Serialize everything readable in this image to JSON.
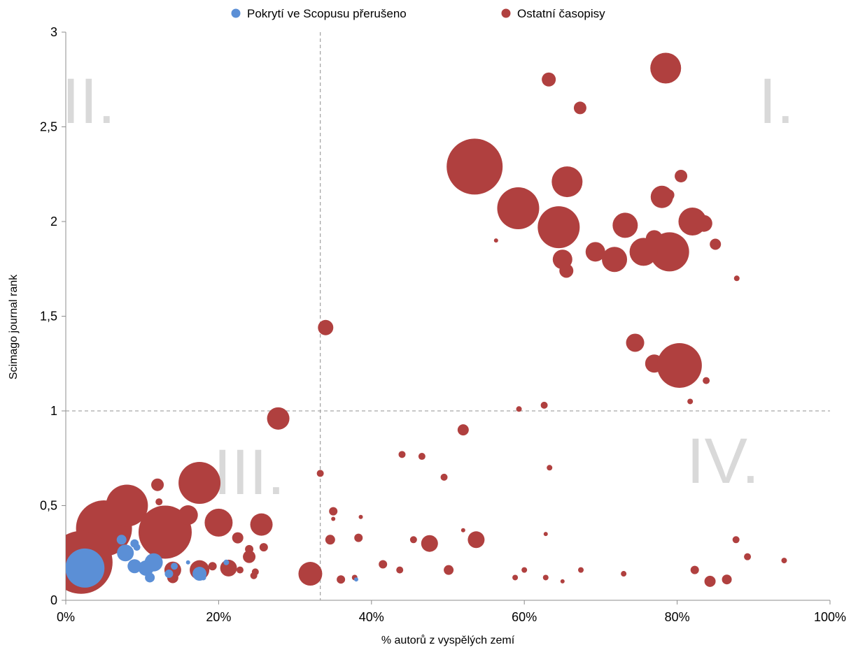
{
  "chart_data": {
    "type": "scatter",
    "bubble": true,
    "xlabel": "% autorů z vyspělých zemí",
    "ylabel": "Scimago journal rank",
    "xlim": [
      0,
      1
    ],
    "ylim": [
      0,
      3
    ],
    "x_ticks": [
      {
        "v": 0,
        "label": "0%"
      },
      {
        "v": 0.2,
        "label": "20%"
      },
      {
        "v": 0.4,
        "label": "40%"
      },
      {
        "v": 0.6,
        "label": "60%"
      },
      {
        "v": 0.8,
        "label": "80%"
      },
      {
        "v": 1.0,
        "label": "100%"
      }
    ],
    "y_ticks": [
      {
        "v": 0,
        "label": "0"
      },
      {
        "v": 0.5,
        "label": "0,5"
      },
      {
        "v": 1,
        "label": "1"
      },
      {
        "v": 1.5,
        "label": "1,5"
      },
      {
        "v": 2,
        "label": "2"
      },
      {
        "v": 2.5,
        "label": "2,5"
      },
      {
        "v": 3,
        "label": "3"
      }
    ],
    "legend_position": "top-center",
    "reference_lines": {
      "x": 0.333,
      "y": 1.0
    },
    "quadrant_labels": [
      {
        "text": "I.",
        "x": 0.93,
        "y": 2.52
      },
      {
        "text": "II.",
        "x": 0.03,
        "y": 2.52
      },
      {
        "text": "III.",
        "x": 0.24,
        "y": 0.56
      },
      {
        "text": "IV.",
        "x": 0.86,
        "y": 0.62
      }
    ],
    "series": [
      {
        "name": "Ostatní časopisy",
        "color": "#b0403f",
        "points": [
          [
            0.785,
            2.81,
            22
          ],
          [
            0.632,
            2.75,
            10
          ],
          [
            0.673,
            2.6,
            9
          ],
          [
            0.535,
            2.29,
            40
          ],
          [
            0.656,
            2.21,
            22
          ],
          [
            0.805,
            2.24,
            9
          ],
          [
            0.592,
            2.07,
            30
          ],
          [
            0.645,
            1.97,
            30
          ],
          [
            0.789,
            2.14,
            8
          ],
          [
            0.78,
            2.13,
            16
          ],
          [
            0.82,
            2.0,
            20
          ],
          [
            0.835,
            1.99,
            12
          ],
          [
            0.732,
            1.98,
            18
          ],
          [
            0.563,
            1.9,
            3
          ],
          [
            0.77,
            1.91,
            12
          ],
          [
            0.79,
            1.84,
            28
          ],
          [
            0.756,
            1.84,
            20
          ],
          [
            0.693,
            1.84,
            14
          ],
          [
            0.718,
            1.8,
            18
          ],
          [
            0.65,
            1.8,
            14
          ],
          [
            0.655,
            1.74,
            10
          ],
          [
            0.85,
            1.88,
            8
          ],
          [
            0.878,
            1.7,
            4
          ],
          [
            0.34,
            1.44,
            11
          ],
          [
            0.745,
            1.36,
            13
          ],
          [
            0.77,
            1.25,
            13
          ],
          [
            0.803,
            1.24,
            32
          ],
          [
            0.838,
            1.16,
            5
          ],
          [
            0.817,
            1.05,
            4
          ],
          [
            0.593,
            1.01,
            4
          ],
          [
            0.626,
            1.03,
            5
          ],
          [
            0.278,
            0.96,
            16
          ],
          [
            0.52,
            0.9,
            8
          ],
          [
            0.44,
            0.77,
            5
          ],
          [
            0.466,
            0.76,
            5
          ],
          [
            0.633,
            0.7,
            4
          ],
          [
            0.495,
            0.65,
            5
          ],
          [
            0.333,
            0.67,
            5
          ],
          [
            0.05,
            0.38,
            40
          ],
          [
            0.02,
            0.2,
            45
          ],
          [
            0.08,
            0.5,
            30
          ],
          [
            0.13,
            0.36,
            38
          ],
          [
            0.175,
            0.62,
            30
          ],
          [
            0.16,
            0.45,
            14
          ],
          [
            0.2,
            0.41,
            20
          ],
          [
            0.225,
            0.33,
            8
          ],
          [
            0.12,
            0.61,
            9
          ],
          [
            0.256,
            0.4,
            16
          ],
          [
            0.122,
            0.52,
            5
          ],
          [
            0.24,
            0.27,
            6
          ],
          [
            0.259,
            0.28,
            6
          ],
          [
            0.24,
            0.23,
            9
          ],
          [
            0.248,
            0.15,
            5
          ],
          [
            0.246,
            0.13,
            5
          ],
          [
            0.228,
            0.16,
            5
          ],
          [
            0.213,
            0.17,
            12
          ],
          [
            0.192,
            0.18,
            6
          ],
          [
            0.175,
            0.16,
            14
          ],
          [
            0.14,
            0.16,
            12
          ],
          [
            0.14,
            0.12,
            8
          ],
          [
            0.32,
            0.14,
            17
          ],
          [
            0.35,
            0.47,
            6
          ],
          [
            0.35,
            0.43,
            3
          ],
          [
            0.386,
            0.44,
            3
          ],
          [
            0.346,
            0.32,
            7
          ],
          [
            0.383,
            0.33,
            6
          ],
          [
            0.36,
            0.11,
            6
          ],
          [
            0.378,
            0.12,
            4
          ],
          [
            0.415,
            0.19,
            6
          ],
          [
            0.437,
            0.16,
            5
          ],
          [
            0.455,
            0.32,
            5
          ],
          [
            0.476,
            0.3,
            12
          ],
          [
            0.501,
            0.16,
            7
          ],
          [
            0.52,
            0.37,
            3
          ],
          [
            0.537,
            0.32,
            12
          ],
          [
            0.588,
            0.12,
            4
          ],
          [
            0.6,
            0.16,
            4
          ],
          [
            0.628,
            0.35,
            3
          ],
          [
            0.628,
            0.12,
            4
          ],
          [
            0.65,
            0.1,
            3
          ],
          [
            0.674,
            0.16,
            4
          ],
          [
            0.73,
            0.14,
            4
          ],
          [
            0.823,
            0.16,
            6
          ],
          [
            0.843,
            0.1,
            8
          ],
          [
            0.865,
            0.11,
            7
          ],
          [
            0.877,
            0.32,
            5
          ],
          [
            0.892,
            0.23,
            5
          ],
          [
            0.94,
            0.21,
            4
          ]
        ]
      },
      {
        "name": "Pokrytí ve Scopusu přerušeno",
        "color": "#5b8fd6",
        "points": [
          [
            0.025,
            0.17,
            28
          ],
          [
            0.073,
            0.32,
            7
          ],
          [
            0.078,
            0.25,
            12
          ],
          [
            0.09,
            0.3,
            6
          ],
          [
            0.093,
            0.28,
            5
          ],
          [
            0.09,
            0.18,
            10
          ],
          [
            0.105,
            0.17,
            11
          ],
          [
            0.115,
            0.2,
            13
          ],
          [
            0.11,
            0.12,
            7
          ],
          [
            0.135,
            0.14,
            6
          ],
          [
            0.142,
            0.18,
            5
          ],
          [
            0.16,
            0.2,
            3
          ],
          [
            0.175,
            0.14,
            10
          ],
          [
            0.18,
            0.12,
            4
          ],
          [
            0.21,
            0.2,
            4
          ],
          [
            0.38,
            0.11,
            3
          ]
        ]
      }
    ]
  }
}
